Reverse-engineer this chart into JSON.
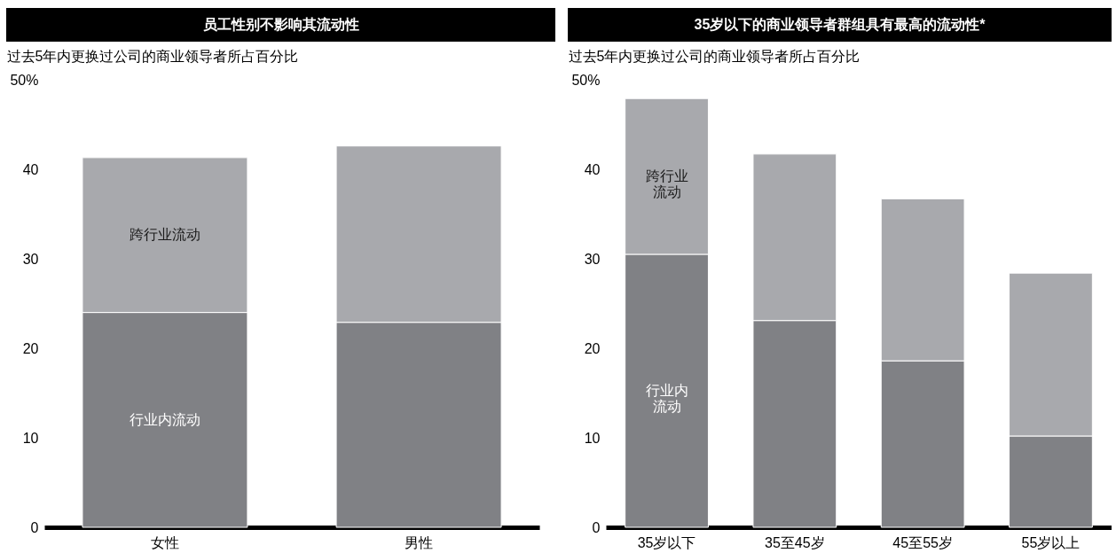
{
  "chart_data": [
    {
      "type": "bar",
      "title": "员工性别不影响其流动性",
      "ylabel": "过去5年内更换过公司的商业领导者所占百分比",
      "categories": [
        "女性",
        "男性"
      ],
      "stacked": true,
      "series": [
        {
          "name": "行业内流动",
          "color": "#808185",
          "values": [
            24.0,
            22.9
          ]
        },
        {
          "name": "跨行业流动",
          "color": "#a8a9ad",
          "values": [
            17.3,
            19.7
          ]
        }
      ],
      "ylim": [
        0,
        50
      ],
      "yticks": [
        0,
        10,
        20,
        30,
        40,
        {
          "value": 50,
          "label": "50%"
        }
      ]
    },
    {
      "type": "bar",
      "title": "35岁以下的商业领导者群组具有最高的流动性*",
      "ylabel": "过去5年内更换过公司的商业领导者所占百分比",
      "categories": [
        "35岁以下",
        "35至45岁",
        "45至55岁",
        "55岁以上"
      ],
      "stacked": true,
      "series": [
        {
          "name": "行业内流动",
          "color": "#808185",
          "values": [
            30.5,
            23.1,
            18.6,
            10.2
          ]
        },
        {
          "name": "跨行业流动",
          "color": "#a8a9ad",
          "values": [
            17.4,
            18.6,
            18.1,
            18.2
          ]
        }
      ],
      "ylim": [
        0,
        50
      ],
      "yticks": [
        0,
        10,
        20,
        30,
        40,
        {
          "value": 50,
          "label": "50%"
        }
      ]
    }
  ]
}
